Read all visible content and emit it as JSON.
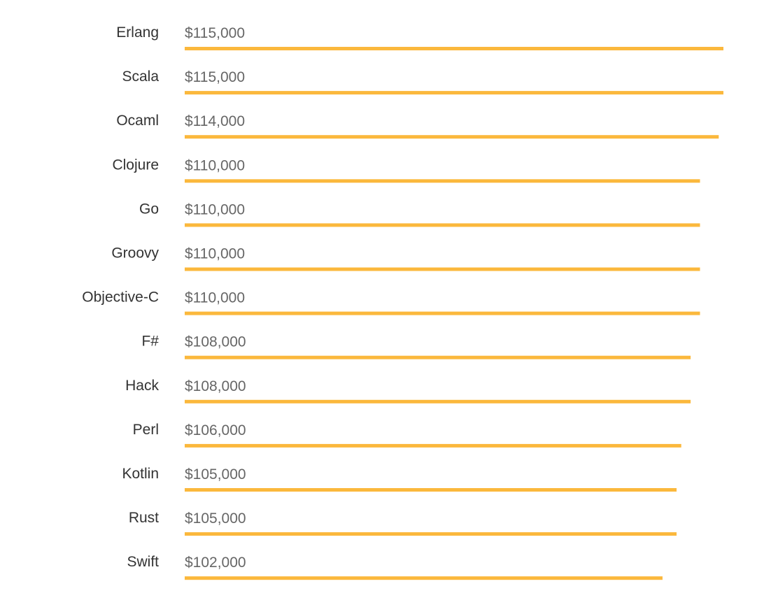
{
  "chart_data": {
    "type": "bar",
    "orientation": "horizontal",
    "categories": [
      "Erlang",
      "Scala",
      "Ocaml",
      "Clojure",
      "Go",
      "Groovy",
      "Objective-C",
      "F#",
      "Hack",
      "Perl",
      "Kotlin",
      "Rust",
      "Swift"
    ],
    "values": [
      115000,
      115000,
      114000,
      110000,
      110000,
      110000,
      110000,
      108000,
      108000,
      106000,
      105000,
      105000,
      102000
    ],
    "value_labels": [
      "$115,000",
      "$115,000",
      "$114,000",
      "$110,000",
      "$110,000",
      "$110,000",
      "$110,000",
      "$108,000",
      "$108,000",
      "$106,000",
      "$105,000",
      "$105,000",
      "$102,000"
    ],
    "xlim": [
      0,
      115000
    ],
    "grid": false,
    "bar_color": "#FBB83C"
  }
}
